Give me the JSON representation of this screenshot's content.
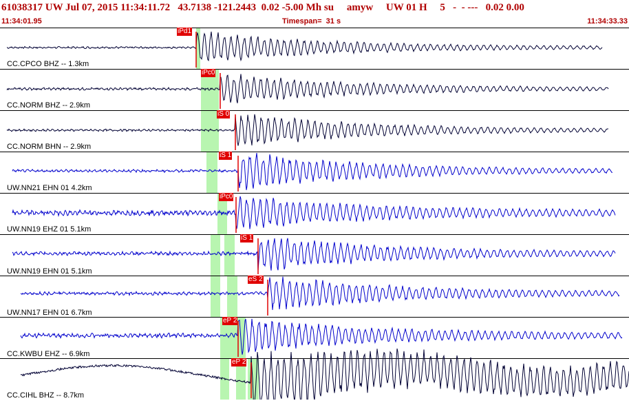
{
  "header": {
    "title": "61038317 UW Jul 07, 2015 11:34:11.72   43.7138 -121.2443  0.02 -5.00 Mh su     amyw     UW 01 H     5   -  - ---   0.02 0.00",
    "start_time": "11:34:01.95",
    "timespan": "Timespan=  31 s",
    "end_time": "11:34:33.33"
  },
  "colors": {
    "title_red": "#b00000",
    "pick_red": "#e00000",
    "window_green": "#b8f5b0",
    "trace_black": "#000033",
    "trace_blue": "#0000cc"
  },
  "traces": [
    {
      "label": "CC.CPCO BHZ -- 1.3km",
      "color": "black",
      "pick": "iPd1"
    },
    {
      "label": "CC.NORM BHZ -- 2.9km",
      "color": "black",
      "pick": "iPc0"
    },
    {
      "label": "CC.NORM BHN -- 2.9km",
      "color": "black",
      "pick": "iS 0"
    },
    {
      "label": "UW.NN21 EHN 01 4.2km",
      "color": "blue",
      "pick": "iS 1"
    },
    {
      "label": "UW.NN19 EHZ 01 5.1km",
      "color": "blue",
      "pick": "iPc0"
    },
    {
      "label": "UW.NN19 EHN 01 5.1km",
      "color": "blue",
      "pick": "iS 1"
    },
    {
      "label": "UW.NN17 EHN 01 6.7km",
      "color": "blue",
      "pick": "eS 2"
    },
    {
      "label": "CC.KWBU EHZ -- 6.9km",
      "color": "blue",
      "pick": "eP 2"
    },
    {
      "label": "CC.CIHL BHZ -- 8.7km",
      "color": "black",
      "pick": "eP 2"
    }
  ]
}
